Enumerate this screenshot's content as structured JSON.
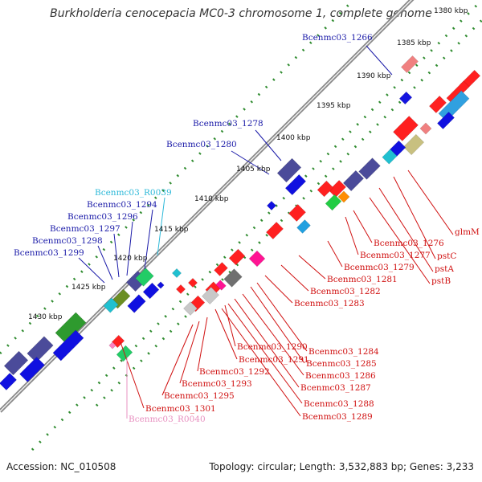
{
  "title": "Burkholderia cenocepacia MC0-3 chromosome 1, complete genome",
  "accession": "Accession: NC_010508",
  "summary": "Topology: circular; Length: 3,532,883 bp; Genes: 3,233",
  "colors": {
    "backbone": "#8c8c8c",
    "tick": "#2e8b2e",
    "label_blue": "#1a1aa8",
    "label_red": "#d01010",
    "label_cyan": "#2bb8d8",
    "label_pink": "#e890c0"
  },
  "kbp_ticks": [
    {
      "label": "1380 kbp"
    },
    {
      "label": "1385 kbp"
    },
    {
      "label": "1390 kbp"
    },
    {
      "label": "1395 kbp"
    },
    {
      "label": "1400 kbp"
    },
    {
      "label": "1405 kbp"
    },
    {
      "label": "1410 kbp"
    },
    {
      "label": "1415 kbp"
    },
    {
      "label": "1420 kbp"
    },
    {
      "label": "1425 kbp"
    },
    {
      "label": "1430 kbp"
    }
  ],
  "gene_labels": [
    {
      "text": "Bcenmc03_1266",
      "color": "blue"
    },
    {
      "text": "Bcenmc03_1278",
      "color": "blue"
    },
    {
      "text": "Bcenmc03_1280",
      "color": "blue"
    },
    {
      "text": "Bcenmc03_R0039",
      "color": "cyan"
    },
    {
      "text": "Bcenmc03_1294",
      "color": "blue"
    },
    {
      "text": "Bcenmc03_1296",
      "color": "blue"
    },
    {
      "text": "Bcenmc03_1297",
      "color": "blue"
    },
    {
      "text": "Bcenmc03_1298",
      "color": "blue"
    },
    {
      "text": "Bcenmc03_1299",
      "color": "blue"
    },
    {
      "text": "glmM",
      "color": "red"
    },
    {
      "text": "pstC",
      "color": "red"
    },
    {
      "text": "pstA",
      "color": "red"
    },
    {
      "text": "pstB",
      "color": "red"
    },
    {
      "text": "Bcenmc03_1276",
      "color": "red"
    },
    {
      "text": "Bcenmc03_1277",
      "color": "red"
    },
    {
      "text": "Bcenmc03_1279",
      "color": "red"
    },
    {
      "text": "Bcenmc03_1281",
      "color": "red"
    },
    {
      "text": "Bcenmc03_1282",
      "color": "red"
    },
    {
      "text": "Bcenmc03_1283",
      "color": "red"
    },
    {
      "text": "Bcenmc03_1284",
      "color": "red"
    },
    {
      "text": "Bcenmc03_1290",
      "color": "red"
    },
    {
      "text": "Bcenmc03_1291",
      "color": "red"
    },
    {
      "text": "Bcenmc03_1285",
      "color": "red"
    },
    {
      "text": "Bcenmc03_1286",
      "color": "red"
    },
    {
      "text": "Bcenmc03_1292",
      "color": "red"
    },
    {
      "text": "Bcenmc03_1287",
      "color": "red"
    },
    {
      "text": "Bcenmc03_1293",
      "color": "red"
    },
    {
      "text": "Bcenmc03_1288",
      "color": "red"
    },
    {
      "text": "Bcenmc03_1295",
      "color": "red"
    },
    {
      "text": "Bcenmc03_1301",
      "color": "red"
    },
    {
      "text": "Bcenmc03_1289",
      "color": "red"
    },
    {
      "text": "Bcenmc03_R0040",
      "color": "pink"
    }
  ]
}
